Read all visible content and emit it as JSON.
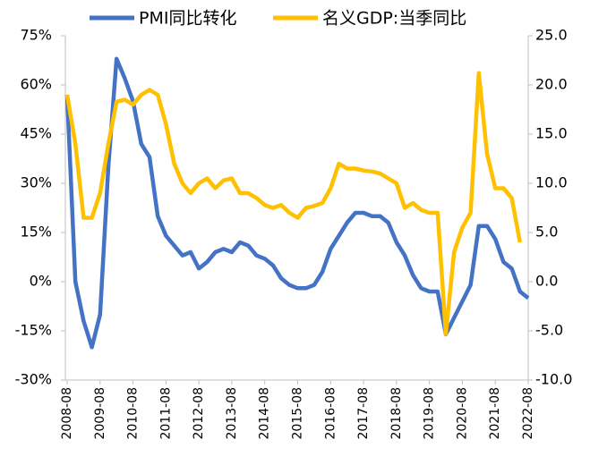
{
  "chart_data": {
    "type": "line",
    "categories": [
      "2008-08",
      null,
      null,
      null,
      "2009-08",
      null,
      null,
      null,
      "2010-08",
      null,
      null,
      null,
      "2011-08",
      null,
      null,
      null,
      "2012-08",
      null,
      null,
      null,
      "2013-08",
      null,
      null,
      null,
      "2014-08",
      null,
      null,
      null,
      "2015-08",
      null,
      null,
      null,
      "2016-08",
      null,
      null,
      null,
      "2017-08",
      null,
      null,
      null,
      "2018-08",
      null,
      null,
      null,
      "2019-08",
      null,
      null,
      null,
      "2020-08",
      null,
      null,
      null,
      "2021-08",
      null,
      null,
      null,
      "2022-08"
    ],
    "series": [
      {
        "name": "PMI同比转化",
        "color": "#4472c4",
        "values": [
          57,
          0,
          -12,
          -20,
          -10,
          35,
          68,
          62,
          55,
          42,
          38,
          20,
          14,
          11,
          8,
          9,
          4,
          6,
          9,
          10,
          9,
          12,
          11,
          8,
          7,
          5,
          1,
          -1,
          -2,
          -2,
          -1,
          3,
          10,
          14,
          18,
          21,
          21,
          20,
          20,
          18,
          12,
          8,
          2,
          -2,
          -3,
          -3,
          -16,
          -11,
          -6,
          -1,
          17,
          17,
          13,
          6,
          4,
          -3,
          -5
        ]
      },
      {
        "name": "名义GDP:当季同比",
        "color": "#ffc000",
        "axis": "y2",
        "values": [
          19,
          14,
          6.5,
          6.5,
          9,
          14,
          18.3,
          18.5,
          18,
          19,
          19.5,
          19,
          16,
          12,
          10,
          9,
          10,
          10.5,
          9.5,
          10.3,
          10.5,
          9,
          9,
          8.5,
          7.8,
          7.5,
          7.8,
          7,
          6.5,
          7.5,
          7.7,
          8,
          9.5,
          12,
          11.5,
          11.5,
          11.3,
          11.2,
          11,
          10.5,
          10,
          7.5,
          8,
          7.3,
          7,
          7,
          -5.3,
          3,
          5.5,
          7,
          21.2,
          13,
          9.5,
          9.5,
          8.5,
          4,
          null
        ]
      }
    ],
    "ylim": [
      -30,
      75
    ],
    "yticks": [
      {
        "value": -30,
        "label": "-30%"
      },
      {
        "value": -15,
        "label": "-15%"
      },
      {
        "value": 0,
        "label": "0%"
      },
      {
        "value": 15,
        "label": "15%"
      },
      {
        "value": 30,
        "label": "30%"
      },
      {
        "value": 45,
        "label": "45%"
      },
      {
        "value": 60,
        "label": "60%"
      },
      {
        "value": 75,
        "label": "75%"
      }
    ],
    "y2lim": [
      -10,
      25
    ],
    "y2ticks": [
      {
        "value": -10,
        "label": "-10.0"
      },
      {
        "value": -5,
        "label": "-5.0"
      },
      {
        "value": 0,
        "label": "0.0"
      },
      {
        "value": 5,
        "label": "5.0"
      },
      {
        "value": 10,
        "label": "10.0"
      },
      {
        "value": 15,
        "label": "15.0"
      },
      {
        "value": 20,
        "label": "20.0"
      },
      {
        "value": 25,
        "label": "25.0"
      }
    ],
    "legend": "top",
    "grid": false
  }
}
